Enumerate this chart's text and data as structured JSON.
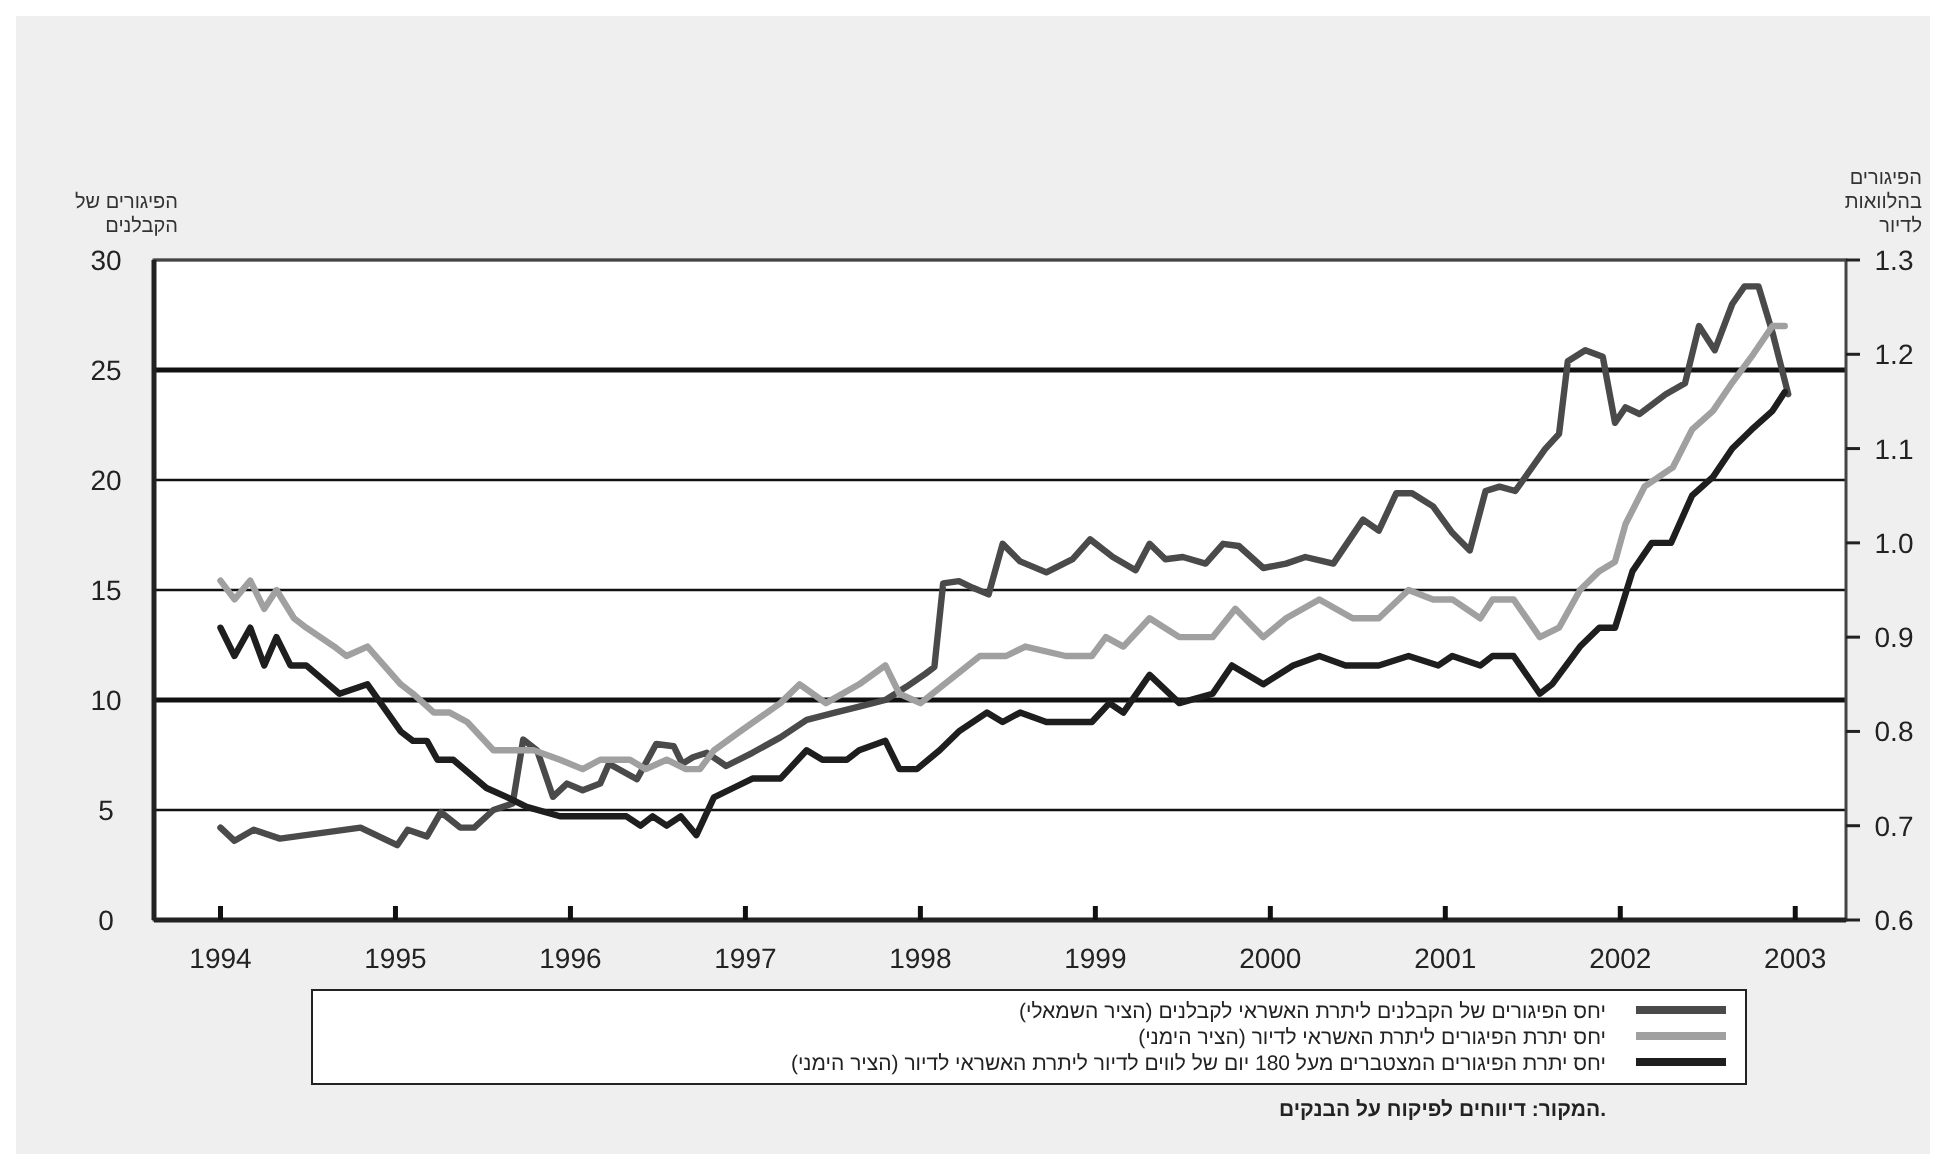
{
  "chart_data": {
    "type": "line",
    "ylabel": "הפיגורים של הקבלנים",
    "y2label": "הפיגורים בהלוואות לדיור",
    "xlim": [
      1993.62,
      2003.29
    ],
    "xticks": [
      1994,
      1995,
      1996,
      1997,
      1998,
      1999,
      2000,
      2001,
      2002,
      2003
    ],
    "ylim": [
      0,
      30
    ],
    "yticks": [
      0,
      5,
      10,
      15,
      20,
      25,
      30
    ],
    "y2lim": [
      0.6,
      1.3
    ],
    "y2ticks": [
      {
        "value": 0.6,
        "label": "0.6"
      },
      {
        "value": 0.7,
        "label": "0.7"
      },
      {
        "value": 0.8,
        "label": "0.8"
      },
      {
        "value": 0.9,
        "label": "0.9"
      },
      {
        "value": 1.0,
        "label": "1.0"
      },
      {
        "value": 1.1,
        "label": "1.1"
      },
      {
        "value": 1.2,
        "label": "1.2"
      },
      {
        "value": 1.3,
        "label": "1.3"
      }
    ],
    "grid": "y",
    "legend": "bottom",
    "marker": "none",
    "line_style": "solid",
    "annotations": [
      "המקור: דיווחים לפיקוח על הבנקים."
    ],
    "series": [
      {
        "name": "יחס הפיגורים של הקבלנים ליתרת האשראי לקבלנים (הציר השמאלי)",
        "color": "#4a4a4a",
        "x": [
          1994.0,
          1994.08,
          1994.19,
          1994.34,
          1994.8,
          1995.01,
          1995.07,
          1995.18,
          1995.26,
          1995.37,
          1995.45,
          1995.56,
          1995.67,
          1995.73,
          1995.81,
          1995.9,
          1995.98,
          1996.07,
          1996.17,
          1996.22,
          1996.38,
          1996.49,
          1996.59,
          1996.64,
          1996.7,
          1996.78,
          1996.89,
          1997.04,
          1997.2,
          1997.35,
          1997.5,
          1997.65,
          1997.8,
          1997.92,
          1998.03,
          1998.08,
          1998.13,
          1998.22,
          1998.3,
          1998.39,
          1998.47,
          1998.57,
          1998.72,
          1998.87,
          1998.97,
          1999.1,
          1999.23,
          1999.31,
          1999.4,
          1999.5,
          1999.63,
          1999.73,
          1999.82,
          1999.96,
          2000.09,
          2000.2,
          2000.36,
          2000.53,
          2000.62,
          2000.72,
          2000.81,
          2000.93,
          2001.04,
          2001.14,
          2001.23,
          2001.31,
          2001.4,
          2001.57,
          2001.65,
          2001.7,
          2001.8,
          2001.9,
          2001.97,
          2002.03,
          2002.11,
          2002.26,
          2002.37,
          2002.45,
          2002.54,
          2002.64,
          2002.71,
          2002.79,
          2002.87,
          2002.96
        ],
        "values": [
          4.2,
          3.6,
          4.1,
          3.7,
          4.2,
          3.4,
          4.1,
          3.8,
          4.9,
          4.2,
          4.2,
          5.0,
          5.3,
          8.2,
          7.7,
          5.6,
          6.2,
          5.9,
          6.2,
          7.1,
          6.4,
          8.0,
          7.9,
          7.1,
          7.4,
          7.6,
          7.0,
          7.6,
          8.3,
          9.1,
          9.4,
          9.7,
          10.0,
          10.6,
          11.2,
          11.5,
          15.3,
          15.4,
          15.1,
          14.8,
          17.1,
          16.3,
          15.8,
          16.4,
          17.3,
          16.5,
          15.9,
          17.1,
          16.4,
          16.5,
          16.2,
          17.1,
          17.0,
          16.0,
          16.2,
          16.5,
          16.2,
          18.2,
          17.7,
          19.4,
          19.4,
          18.8,
          17.6,
          16.8,
          19.5,
          19.7,
          19.5,
          21.4,
          22.1,
          25.4,
          25.9,
          25.6,
          22.6,
          23.3,
          23.0,
          23.9,
          24.4,
          27.0,
          25.9,
          28.0,
          28.8,
          28.8,
          26.7,
          23.9
        ]
      },
      {
        "name": "יחס יתרת הפיגורים ליתרת האשראי לדיור (הציר הימני)",
        "color": "#a0a0a0",
        "axis": "y2",
        "x": [
          1994.0,
          1994.08,
          1994.17,
          1994.25,
          1994.32,
          1994.42,
          1994.49,
          1994.65,
          1994.72,
          1994.84,
          1995.03,
          1995.1,
          1995.22,
          1995.31,
          1995.41,
          1995.56,
          1995.67,
          1995.79,
          1995.94,
          1996.07,
          1996.17,
          1996.34,
          1996.43,
          1996.55,
          1996.66,
          1996.74,
          1996.82,
          1996.97,
          1997.2,
          1997.31,
          1997.46,
          1997.65,
          1997.8,
          1997.88,
          1998.0,
          1998.34,
          1998.49,
          1998.6,
          1998.83,
          1998.98,
          1999.06,
          1999.16,
          1999.31,
          1999.48,
          1999.67,
          1999.8,
          1999.96,
          2000.09,
          2000.28,
          2000.47,
          2000.62,
          2000.79,
          2000.93,
          2001.04,
          2001.2,
          2001.27,
          2001.39,
          2001.54,
          2001.65,
          2001.77,
          2001.88,
          2001.97,
          2002.03,
          2002.14,
          2002.3,
          2002.41,
          2002.53,
          2002.64,
          2002.76,
          2002.87,
          2002.94
        ],
        "values": [
          0.96,
          0.94,
          0.96,
          0.93,
          0.95,
          0.92,
          0.91,
          0.89,
          0.88,
          0.89,
          0.85,
          0.84,
          0.82,
          0.82,
          0.81,
          0.78,
          0.78,
          0.78,
          0.77,
          0.76,
          0.77,
          0.77,
          0.76,
          0.77,
          0.76,
          0.76,
          0.78,
          0.8,
          0.83,
          0.85,
          0.83,
          0.85,
          0.87,
          0.84,
          0.83,
          0.88,
          0.88,
          0.89,
          0.88,
          0.88,
          0.9,
          0.89,
          0.92,
          0.9,
          0.9,
          0.93,
          0.9,
          0.92,
          0.94,
          0.92,
          0.92,
          0.95,
          0.94,
          0.94,
          0.92,
          0.94,
          0.94,
          0.9,
          0.91,
          0.95,
          0.97,
          0.98,
          1.02,
          1.06,
          1.08,
          1.12,
          1.14,
          1.17,
          1.2,
          1.23,
          1.23
        ]
      },
      {
        "name": "יחס יתרת הפיגורים המצטברים מעל 180 יום של לווים לדיור ליתרת האשראי לדיור (הציר הימני)",
        "color": "#1e1e1e",
        "axis": "y2",
        "x": [
          1994.0,
          1994.08,
          1994.17,
          1994.25,
          1994.32,
          1994.4,
          1994.49,
          1994.68,
          1994.84,
          1995.03,
          1995.1,
          1995.18,
          1995.24,
          1995.33,
          1995.52,
          1995.64,
          1995.75,
          1995.94,
          1996.13,
          1996.25,
          1996.32,
          1996.4,
          1996.47,
          1996.55,
          1996.63,
          1996.72,
          1996.82,
          1996.93,
          1997.04,
          1997.2,
          1997.35,
          1997.44,
          1997.58,
          1997.65,
          1997.8,
          1997.88,
          1997.98,
          1998.11,
          1998.22,
          1998.38,
          1998.47,
          1998.57,
          1998.72,
          1998.89,
          1998.98,
          1999.08,
          1999.16,
          1999.31,
          1999.48,
          1999.67,
          1999.78,
          1999.96,
          2000.13,
          2000.28,
          2000.43,
          2000.62,
          2000.79,
          2000.96,
          2001.04,
          2001.2,
          2001.27,
          2001.39,
          2001.54,
          2001.61,
          2001.77,
          2001.88,
          2001.97,
          2002.07,
          2002.18,
          2002.29,
          2002.41,
          2002.53,
          2002.64,
          2002.75,
          2002.87,
          2002.94
        ],
        "values": [
          0.91,
          0.88,
          0.91,
          0.87,
          0.9,
          0.87,
          0.87,
          0.84,
          0.85,
          0.8,
          0.79,
          0.79,
          0.77,
          0.77,
          0.74,
          0.73,
          0.72,
          0.71,
          0.71,
          0.71,
          0.71,
          0.7,
          0.71,
          0.7,
          0.71,
          0.69,
          0.73,
          0.74,
          0.75,
          0.75,
          0.78,
          0.77,
          0.77,
          0.78,
          0.79,
          0.76,
          0.76,
          0.78,
          0.8,
          0.82,
          0.81,
          0.82,
          0.81,
          0.81,
          0.81,
          0.83,
          0.82,
          0.86,
          0.83,
          0.84,
          0.87,
          0.85,
          0.87,
          0.88,
          0.87,
          0.87,
          0.88,
          0.87,
          0.88,
          0.87,
          0.88,
          0.88,
          0.84,
          0.85,
          0.89,
          0.91,
          0.91,
          0.97,
          1.0,
          1.0,
          1.05,
          1.07,
          1.1,
          1.12,
          1.14,
          1.16
        ]
      }
    ]
  }
}
